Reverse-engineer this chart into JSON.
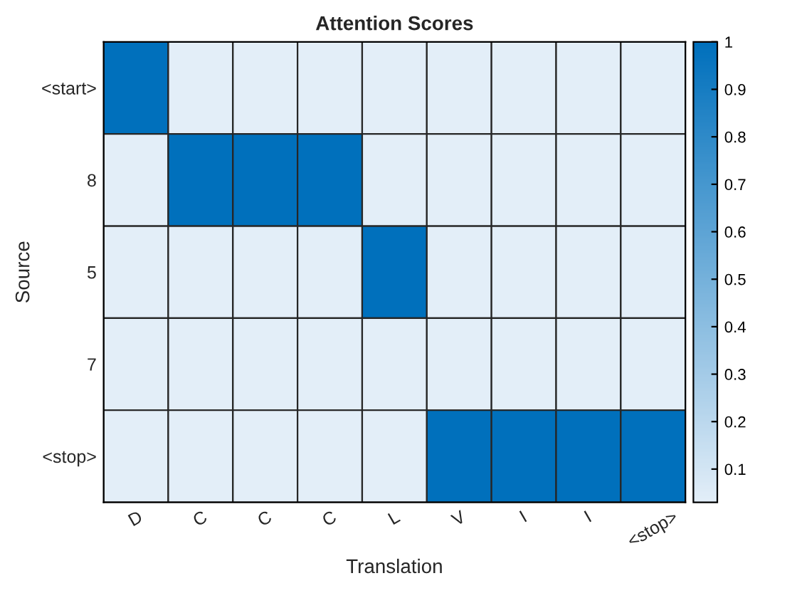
{
  "chart_data": {
    "type": "heatmap",
    "title": "Attention Scores",
    "xlabel": "Translation",
    "ylabel": "Source",
    "categories": [
      "D",
      "C",
      "C",
      "C",
      "L",
      "V",
      "I",
      "I",
      "<stop>"
    ],
    "y_categories": [
      "<start>",
      "8",
      "5",
      "7",
      "<stop>"
    ],
    "cells": [
      [
        1,
        0.03,
        0.03,
        0.03,
        0.03,
        0.03,
        0.03,
        0.03,
        0.03
      ],
      [
        0.03,
        1,
        1,
        1,
        0.03,
        0.03,
        0.03,
        0.03,
        0.03
      ],
      [
        0.03,
        0.03,
        0.03,
        0.03,
        1,
        0.03,
        0.03,
        0.03,
        0.03
      ],
      [
        0.03,
        0.03,
        0.03,
        0.03,
        0.03,
        0.03,
        0.03,
        0.03,
        0.03
      ],
      [
        0.03,
        0.03,
        0.03,
        0.03,
        0.03,
        1,
        1,
        1,
        1
      ]
    ],
    "clim": [
      0.03,
      1
    ],
    "cticks": [
      0.1,
      0.2,
      0.3,
      0.4,
      0.5,
      0.6,
      0.7,
      0.8,
      0.9,
      1
    ]
  }
}
